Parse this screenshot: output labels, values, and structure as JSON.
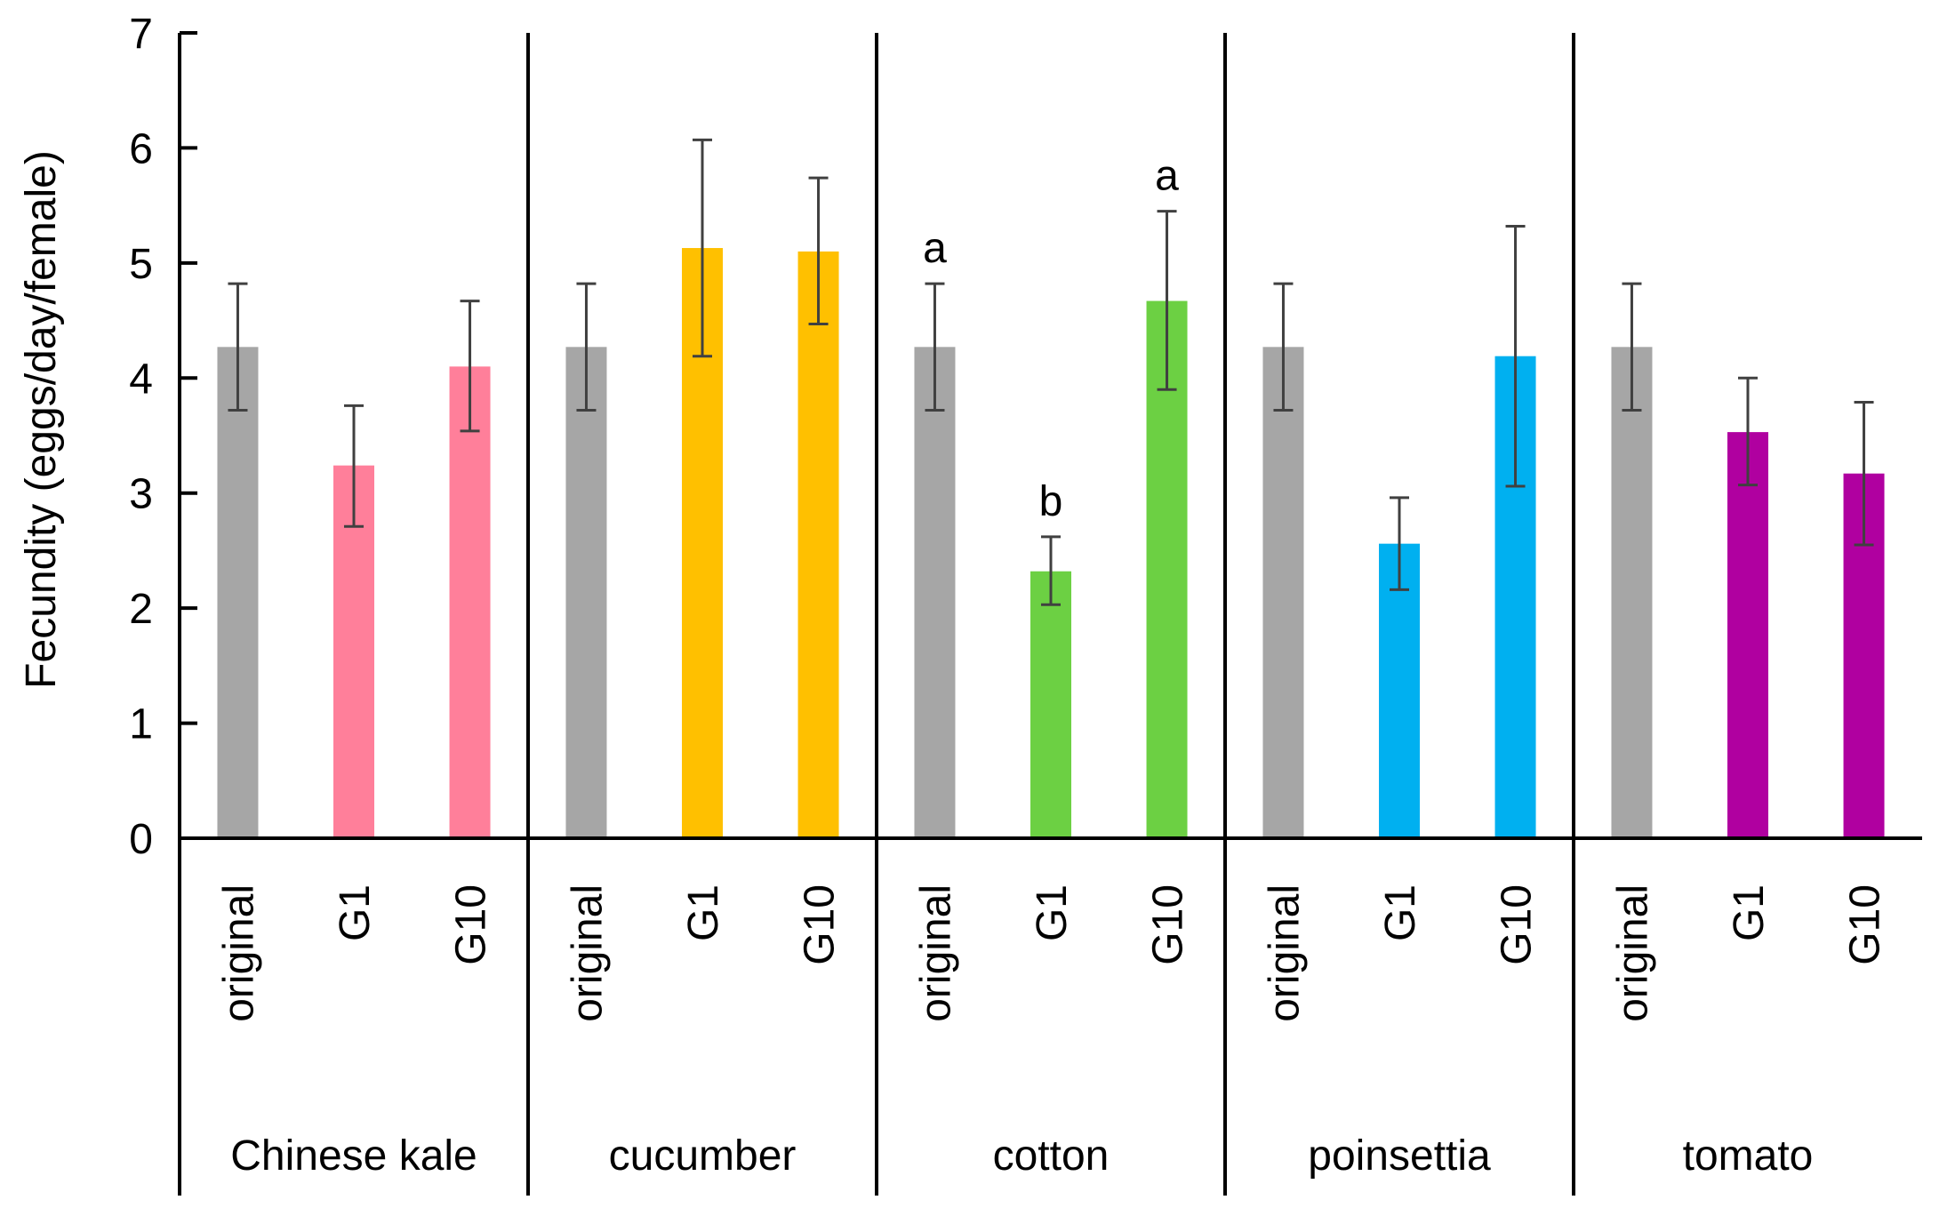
{
  "chart_data": {
    "type": "bar",
    "title": "",
    "xlabel": "",
    "ylabel": "Fecundity (eggs/day/female)",
    "ylim": [
      0,
      7
    ],
    "yticks": [
      "0",
      "1",
      "2",
      "3",
      "4",
      "5",
      "6",
      "7"
    ],
    "grid": false,
    "legend": "none",
    "colors": {
      "original": "#a6a6a6",
      "Chinese kale": "#ff7f9a",
      "cucumber": "#ffc000",
      "cotton": "#6cd043",
      "poinsettia": "#00b0f0",
      "tomato": "#b000a0",
      "error_bar": "#404040"
    },
    "groups": [
      {
        "name": "Chinese kale",
        "bars": [
          {
            "label": "original",
            "value": 4.27,
            "err_low": 3.72,
            "err_high": 4.82,
            "sig": ""
          },
          {
            "label": "G1",
            "value": 3.24,
            "err_low": 2.71,
            "err_high": 3.76,
            "sig": ""
          },
          {
            "label": "G10",
            "value": 4.1,
            "err_low": 3.54,
            "err_high": 4.67,
            "sig": ""
          }
        ]
      },
      {
        "name": "cucumber",
        "bars": [
          {
            "label": "original",
            "value": 4.27,
            "err_low": 3.72,
            "err_high": 4.82,
            "sig": ""
          },
          {
            "label": "G1",
            "value": 5.13,
            "err_low": 4.19,
            "err_high": 6.07,
            "sig": ""
          },
          {
            "label": "G10",
            "value": 5.1,
            "err_low": 4.47,
            "err_high": 5.74,
            "sig": ""
          }
        ]
      },
      {
        "name": "cotton",
        "bars": [
          {
            "label": "original",
            "value": 4.27,
            "err_low": 3.72,
            "err_high": 4.82,
            "sig": "a"
          },
          {
            "label": "G1",
            "value": 2.32,
            "err_low": 2.03,
            "err_high": 2.62,
            "sig": "b"
          },
          {
            "label": "G10",
            "value": 4.67,
            "err_low": 3.9,
            "err_high": 5.45,
            "sig": "a"
          }
        ]
      },
      {
        "name": "poinsettia",
        "bars": [
          {
            "label": "original",
            "value": 4.27,
            "err_low": 3.72,
            "err_high": 4.82,
            "sig": ""
          },
          {
            "label": "G1",
            "value": 2.56,
            "err_low": 2.16,
            "err_high": 2.96,
            "sig": ""
          },
          {
            "label": "G10",
            "value": 4.19,
            "err_low": 3.06,
            "err_high": 5.32,
            "sig": ""
          }
        ]
      },
      {
        "name": "tomato",
        "bars": [
          {
            "label": "original",
            "value": 4.27,
            "err_low": 3.72,
            "err_high": 4.82,
            "sig": ""
          },
          {
            "label": "G1",
            "value": 3.53,
            "err_low": 3.07,
            "err_high": 4.0,
            "sig": ""
          },
          {
            "label": "G10",
            "value": 3.17,
            "err_low": 2.55,
            "err_high": 3.79,
            "sig": ""
          }
        ]
      }
    ]
  }
}
